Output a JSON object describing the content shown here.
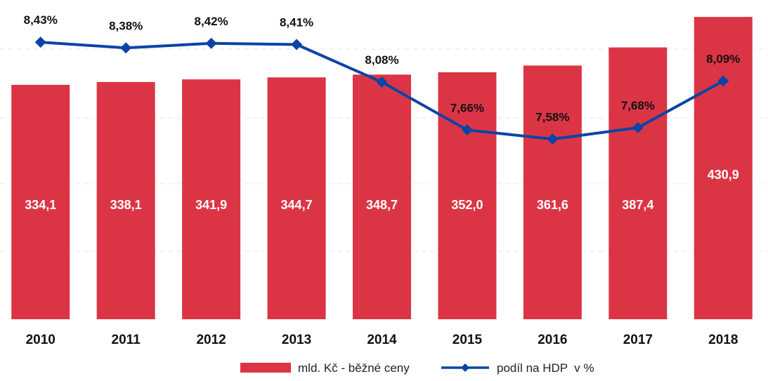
{
  "chart_data": {
    "type": "bar",
    "categories": [
      "2010",
      "2011",
      "2012",
      "2013",
      "2014",
      "2015",
      "2016",
      "2017",
      "2018"
    ],
    "series": [
      {
        "name": "mld. Kč - běžné ceny",
        "type": "bar",
        "axis": "left",
        "values": [
          334.1,
          338.1,
          341.9,
          344.7,
          348.7,
          352.0,
          361.6,
          387.4,
          430.9
        ],
        "labels": [
          "334,1",
          "338,1",
          "341,9",
          "344,7",
          "348,7",
          "352,0",
          "361,6",
          "387,4",
          "430,9"
        ],
        "color": "#db3545"
      },
      {
        "name": "podíl na HDP  v %",
        "type": "line",
        "axis": "right",
        "values": [
          8.43,
          8.38,
          8.42,
          8.41,
          8.08,
          7.66,
          7.58,
          7.68,
          8.09
        ],
        "labels": [
          "8,43%",
          "8,38%",
          "8,42%",
          "8,41%",
          "8,08%",
          "7,66%",
          "7,58%",
          "7,68%",
          "8,09%"
        ],
        "color": "#0b44a6"
      }
    ],
    "title": "",
    "xlabel": "",
    "ylabel": "",
    "ylim_left": [
      0,
      455
    ],
    "ylim_right": [
      6.0,
      8.8
    ],
    "grid": true,
    "legend_position": "bottom"
  }
}
